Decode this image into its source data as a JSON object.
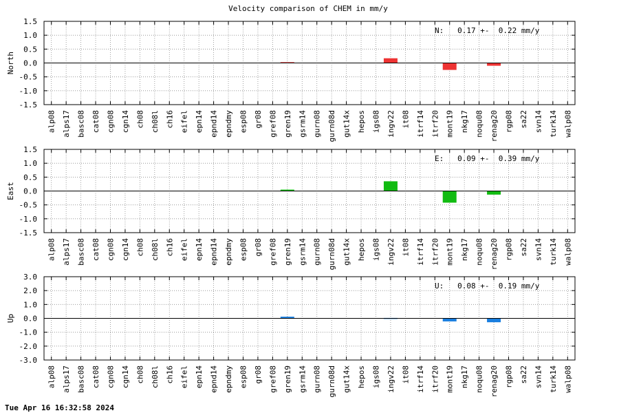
{
  "title": "Velocity comparison of CHEM in mm/y",
  "footer": "Tue Apr 16 16:32:58 2024",
  "colors": {
    "north": "#ee3333",
    "east": "#11bb11",
    "up": "#1a7fe0",
    "grid": "#888888",
    "axis": "#000000"
  },
  "chart_data": [
    {
      "type": "bar",
      "ylabel": "North",
      "ylim": [
        -1.5,
        1.5
      ],
      "yticks": [
        "1.5",
        "1.0",
        "0.5",
        "0.0",
        "-0.5",
        "-1.0",
        "-1.5"
      ],
      "annotation": "N:   0.17 +-  0.22 mm/y",
      "grid": true,
      "categories": [
        "alp08",
        "alps17",
        "basc08",
        "cat08",
        "cgn08",
        "cgn14",
        "ch08",
        "ch08l",
        "ch16",
        "eifel",
        "epn14",
        "epnd14",
        "epndmy",
        "esp08",
        "gr08",
        "gref08",
        "gren19",
        "gsrm14",
        "gurn08",
        "gurn08d",
        "gut14x",
        "hepos",
        "igs08",
        "ingv22",
        "it08",
        "itrf14",
        "itrf20",
        "mont19",
        "nkg17",
        "noqu08",
        "renag20",
        "rgp08",
        "sa22",
        "svn14",
        "turk14",
        "walp08"
      ],
      "values": [
        null,
        null,
        null,
        null,
        null,
        null,
        null,
        null,
        null,
        null,
        null,
        null,
        null,
        null,
        null,
        null,
        0.03,
        null,
        null,
        null,
        null,
        null,
        null,
        0.17,
        null,
        null,
        null,
        -0.25,
        null,
        null,
        -0.1,
        null,
        null,
        null,
        null,
        null
      ]
    },
    {
      "type": "bar",
      "ylabel": "East",
      "ylim": [
        -1.5,
        1.5
      ],
      "yticks": [
        "1.5",
        "1.0",
        "0.5",
        "0.0",
        "-0.5",
        "-1.0",
        "-1.5"
      ],
      "annotation": "E:   0.09 +-  0.39 mm/y",
      "grid": true,
      "categories": [
        "alp08",
        "alps17",
        "basc08",
        "cat08",
        "cgn08",
        "cgn14",
        "ch08",
        "ch08l",
        "ch16",
        "eifel",
        "epn14",
        "epnd14",
        "epndmy",
        "esp08",
        "gr08",
        "gref08",
        "gren19",
        "gsrm14",
        "gurn08",
        "gurn08d",
        "gut14x",
        "hepos",
        "igs08",
        "ingv22",
        "it08",
        "itrf14",
        "itrf20",
        "mont19",
        "nkg17",
        "noqu08",
        "renag20",
        "rgp08",
        "sa22",
        "svn14",
        "turk14",
        "walp08"
      ],
      "values": [
        null,
        null,
        null,
        null,
        null,
        null,
        null,
        null,
        null,
        null,
        null,
        null,
        null,
        null,
        null,
        null,
        0.05,
        null,
        null,
        null,
        null,
        null,
        null,
        0.35,
        null,
        null,
        null,
        -0.42,
        null,
        null,
        -0.13,
        null,
        null,
        null,
        null,
        null
      ]
    },
    {
      "type": "bar",
      "ylabel": "Up",
      "ylim": [
        -3.0,
        3.0
      ],
      "yticks": [
        "3.0",
        "2.0",
        "1.0",
        "0.0",
        "-1.0",
        "-2.0",
        "-3.0"
      ],
      "annotation": "U:   0.08 +-  0.19 mm/y",
      "grid": true,
      "categories": [
        "alp08",
        "alps17",
        "basc08",
        "cat08",
        "cgn08",
        "cgn14",
        "ch08",
        "ch08l",
        "ch16",
        "eifel",
        "epn14",
        "epnd14",
        "epndmy",
        "esp08",
        "gr08",
        "gref08",
        "gren19",
        "gsrm14",
        "gurn08",
        "gurn08d",
        "gut14x",
        "hepos",
        "igs08",
        "ingv22",
        "it08",
        "itrf14",
        "itrf20",
        "mont19",
        "nkg17",
        "noqu08",
        "renag20",
        "rgp08",
        "sa22",
        "svn14",
        "turk14",
        "walp08"
      ],
      "values": [
        null,
        null,
        null,
        null,
        null,
        null,
        null,
        null,
        null,
        null,
        null,
        null,
        null,
        null,
        null,
        null,
        0.12,
        null,
        null,
        null,
        null,
        null,
        null,
        0.03,
        null,
        null,
        null,
        -0.22,
        null,
        null,
        -0.28,
        null,
        null,
        null,
        null,
        null
      ]
    }
  ]
}
